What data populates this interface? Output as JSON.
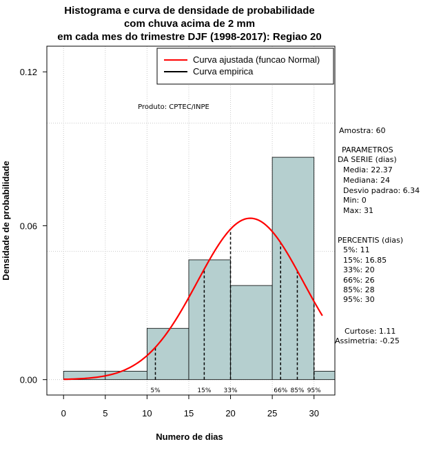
{
  "chart_data": {
    "type": "bar",
    "title_lines": [
      "Histograma e curva de densidade de probabilidade",
      "com chuva acima de 2 mm",
      "em cada mes do trimestre DJF (1998-2017): Regiao 20"
    ],
    "xlabel": "Numero de dias",
    "ylabel": "Densidade de probabilidade",
    "xlim": [
      -2,
      32.5
    ],
    "ylim": [
      -0.006,
      0.13
    ],
    "x_ticks": [
      "0",
      "5",
      "10",
      "15",
      "20",
      "25",
      "30"
    ],
    "y_ticks": [
      "0.00",
      "0.06",
      "0.12"
    ],
    "bins": [
      {
        "from": 0,
        "to": 5,
        "density": 0.0033
      },
      {
        "from": 5,
        "to": 10,
        "density": 0.0033
      },
      {
        "from": 10,
        "to": 15,
        "density": 0.02
      },
      {
        "from": 15,
        "to": 20,
        "density": 0.0467
      },
      {
        "from": 20,
        "to": 25,
        "density": 0.0367
      },
      {
        "from": 25,
        "to": 30,
        "density": 0.0867
      },
      {
        "from": 30,
        "to": 32.5,
        "density": 0.0033
      }
    ],
    "bar_color": "#b5cfcf",
    "curve_color": "#ff0000",
    "normal_fit": {
      "mean": 22.37,
      "sd": 6.34,
      "x_from": 0,
      "x_to": 31
    },
    "percentiles": [
      {
        "label": "5%",
        "value": 11
      },
      {
        "label": "15%",
        "value": 16.85
      },
      {
        "label": "33%",
        "value": 20
      },
      {
        "label": "66%",
        "value": 26
      },
      {
        "label": "85%",
        "value": 28
      },
      {
        "label": "95%",
        "value": 30
      }
    ],
    "legend": [
      "Curva ajustada (funcao Normal)",
      "Curva empirica"
    ],
    "annotation": "Produto: CPTEC/INPE",
    "side_text": [
      "Amostra: 60",
      "PARAMETROS",
      "DA SERIE (dias)",
      "Media: 22.37",
      "Mediana: 24",
      "Desvio padrao: 6.34",
      "Min: 0",
      "Max: 31",
      "PERCENTIS (dias)",
      "5%: 11",
      "15%: 16.85",
      "33%: 20",
      "66%: 26",
      "85%: 28",
      "95%: 30",
      "Curtose: 1.11",
      "Assimetria: -0.25"
    ]
  }
}
